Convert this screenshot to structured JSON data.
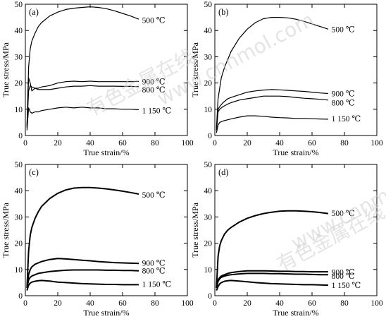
{
  "watermark": {
    "cn": "有色金属在线",
    "en": "www.cnnmol.com"
  },
  "chart_data": [
    {
      "type": "line",
      "panel_label": "(a)",
      "xlabel": "True strain/%",
      "ylabel": "True stress/MPa",
      "xlim": [
        0,
        100
      ],
      "ylim": [
        0,
        50
      ],
      "xticks": [
        0,
        20,
        40,
        60,
        80,
        100
      ],
      "yticks": [
        0,
        10,
        20,
        30,
        40,
        50
      ],
      "series": [
        {
          "name": "500 ℃",
          "x": [
            1,
            2,
            3,
            4,
            6,
            8,
            10,
            15,
            20,
            25,
            30,
            35,
            40,
            45,
            50,
            55,
            60,
            65,
            70
          ],
          "y": [
            4,
            26,
            33,
            36,
            39,
            41.5,
            43,
            45.5,
            47,
            48,
            48.5,
            48.8,
            49,
            48.8,
            48.3,
            47.5,
            46.5,
            45.5,
            44.3
          ]
        },
        {
          "name": "900 ℃",
          "x": [
            1,
            2,
            3,
            4,
            6,
            8,
            10,
            15,
            20,
            25,
            30,
            35,
            40,
            45,
            50,
            55,
            60,
            65,
            70
          ],
          "y": [
            3,
            22,
            20,
            17,
            18,
            18,
            18.5,
            19,
            20,
            20.5,
            20.7,
            20.5,
            20.7,
            20.5,
            20.5,
            20.5,
            20.5,
            20.5,
            20.6
          ]
        },
        {
          "name": "800 ℃",
          "x": [
            1,
            2,
            3,
            4,
            6,
            8,
            10,
            15,
            20,
            25,
            30,
            35,
            40,
            45,
            50,
            55,
            60,
            65,
            70
          ],
          "y": [
            3,
            17,
            19,
            18.5,
            18,
            17.5,
            17.5,
            17.5,
            18,
            18.5,
            18.8,
            18.8,
            19,
            18.8,
            18.8,
            18.8,
            18.7,
            18.7,
            18.6
          ]
        },
        {
          "name": "1 150 ℃",
          "x": [
            1,
            2,
            3,
            4,
            6,
            8,
            10,
            15,
            20,
            25,
            30,
            35,
            40,
            45,
            50,
            55,
            60,
            65,
            70
          ],
          "y": [
            2,
            10.5,
            9,
            8.5,
            9,
            9,
            9.5,
            10,
            10.5,
            10.8,
            10.5,
            10.8,
            10.5,
            10.5,
            10.2,
            10.2,
            10,
            10,
            9.8
          ]
        }
      ],
      "label_values": [
        44,
        20.5,
        17.5,
        9.5
      ]
    },
    {
      "type": "line",
      "panel_label": "(b)",
      "xlabel": "True strain/%",
      "ylabel": "True stress/MPa",
      "xlim": [
        0,
        100
      ],
      "ylim": [
        0,
        50
      ],
      "xticks": [
        0,
        20,
        40,
        60,
        80,
        100
      ],
      "yticks": [
        0,
        10,
        20,
        30,
        40,
        50
      ],
      "series": [
        {
          "name": "500 ℃",
          "x": [
            1,
            2,
            3,
            4,
            6,
            8,
            10,
            15,
            20,
            25,
            30,
            35,
            40,
            45,
            50,
            55,
            60,
            65,
            70
          ],
          "y": [
            3,
            14,
            18,
            22,
            26,
            29,
            32,
            37,
            40.5,
            43,
            44.5,
            45,
            45,
            44.8,
            44.3,
            43.5,
            42.5,
            41.5,
            40.5
          ]
        },
        {
          "name": "900 ℃",
          "x": [
            1,
            2,
            3,
            5,
            8,
            10,
            15,
            20,
            25,
            30,
            35,
            40,
            45,
            50,
            55,
            60,
            65,
            70
          ],
          "y": [
            2,
            10,
            11,
            12.5,
            14,
            14.5,
            15.5,
            16.5,
            17,
            17.3,
            17.5,
            17.4,
            17.2,
            17,
            16.8,
            16.5,
            16.2,
            16
          ]
        },
        {
          "name": "800 ℃",
          "x": [
            1,
            2,
            3,
            5,
            8,
            10,
            15,
            20,
            25,
            30,
            35,
            40,
            45,
            50,
            55,
            60,
            65,
            70
          ],
          "y": [
            2,
            9,
            10,
            11,
            12,
            12.5,
            13.5,
            14,
            14.5,
            15,
            15,
            15,
            14.8,
            14.5,
            14.2,
            14,
            13.8,
            13.5
          ]
        },
        {
          "name": "1 150 ℃",
          "x": [
            1,
            2,
            3,
            5,
            8,
            10,
            15,
            20,
            25,
            30,
            35,
            40,
            45,
            50,
            55,
            60,
            65,
            70
          ],
          "y": [
            1,
            4,
            5,
            5.5,
            6,
            6.3,
            7,
            7.5,
            7.5,
            7.3,
            7,
            6.8,
            6.7,
            6.5,
            6.5,
            6.4,
            6.3,
            6.2
          ]
        }
      ],
      "label_values": [
        40.5,
        16,
        12.5,
        6.5
      ]
    },
    {
      "type": "line",
      "panel_label": "(c)",
      "xlabel": "True strain/%",
      "ylabel": "True stress/MPa",
      "xlim": [
        0,
        100
      ],
      "ylim": [
        0,
        50
      ],
      "xticks": [
        0,
        20,
        40,
        60,
        80,
        100
      ],
      "yticks": [
        0,
        10,
        20,
        30,
        40,
        50
      ],
      "series": [
        {
          "name": "500 ℃",
          "x": [
            1,
            2,
            3,
            4,
            6,
            8,
            10,
            15,
            20,
            25,
            30,
            35,
            40,
            45,
            50,
            55,
            60,
            65,
            70
          ],
          "y": [
            3,
            17,
            23,
            26,
            29.5,
            32,
            34,
            37,
            39,
            40.3,
            41,
            41.2,
            41.2,
            41,
            40.7,
            40.3,
            39.8,
            39.3,
            38.7
          ]
        },
        {
          "name": "900 ℃",
          "x": [
            1,
            2,
            3,
            4,
            6,
            8,
            10,
            15,
            20,
            25,
            30,
            35,
            40,
            45,
            50,
            55,
            60,
            65,
            70
          ],
          "y": [
            3,
            8,
            10,
            11,
            12,
            12.5,
            13,
            13.8,
            14.2,
            14,
            13.8,
            13.5,
            13.3,
            13,
            12.8,
            12.6,
            12.5,
            12.4,
            12.3
          ]
        },
        {
          "name": "800 ℃",
          "x": [
            1,
            2,
            3,
            4,
            6,
            8,
            10,
            15,
            20,
            25,
            30,
            35,
            40,
            45,
            50,
            55,
            60,
            65,
            70
          ],
          "y": [
            3,
            6,
            7,
            7.5,
            8,
            8.5,
            8.7,
            9.2,
            9.5,
            9.7,
            9.8,
            9.8,
            9.8,
            9.8,
            9.7,
            9.7,
            9.6,
            9.6,
            9.5
          ]
        },
        {
          "name": "1 150 ℃",
          "x": [
            1,
            2,
            3,
            4,
            6,
            8,
            10,
            15,
            20,
            25,
            30,
            35,
            40,
            45,
            50,
            55,
            60,
            65,
            70
          ],
          "y": [
            2,
            4,
            4.8,
            5.2,
            5.5,
            5.7,
            5.8,
            5.6,
            5.2,
            5,
            4.8,
            4.6,
            4.5,
            4.4,
            4.3,
            4.3,
            4.2,
            4.2,
            4.2
          ]
        }
      ],
      "label_values": [
        38.5,
        12.5,
        9.5,
        4.5
      ]
    },
    {
      "type": "line",
      "panel_label": "(d)",
      "xlabel": "True strain/%",
      "ylabel": "True stress/MPa",
      "xlim": [
        0,
        100
      ],
      "ylim": [
        0,
        50
      ],
      "xticks": [
        0,
        20,
        40,
        60,
        80,
        100
      ],
      "yticks": [
        0,
        10,
        20,
        30,
        40,
        50
      ],
      "series": [
        {
          "name": "500 ℃",
          "x": [
            1,
            2,
            3,
            4,
            6,
            8,
            10,
            15,
            20,
            25,
            30,
            35,
            40,
            45,
            50,
            55,
            60,
            65,
            70
          ],
          "y": [
            3,
            15,
            19,
            21,
            23.5,
            25,
            26,
            28,
            29.5,
            30.5,
            31.3,
            31.8,
            32.2,
            32.3,
            32.3,
            32.2,
            32,
            31.7,
            31.3
          ]
        },
        {
          "name": "900 ℃",
          "x": [
            1,
            2,
            3,
            4,
            6,
            8,
            10,
            15,
            20,
            25,
            30,
            35,
            40,
            45,
            50,
            55,
            60,
            65,
            70
          ],
          "y": [
            3,
            6,
            7,
            7.5,
            8,
            8.5,
            8.8,
            9.2,
            9.5,
            9.5,
            9.5,
            9.4,
            9.3,
            9.3,
            9.2,
            9.2,
            9.1,
            9.1,
            9.1
          ]
        },
        {
          "name": "800 ℃",
          "x": [
            1,
            2,
            3,
            4,
            6,
            8,
            10,
            15,
            20,
            25,
            30,
            35,
            40,
            45,
            50,
            55,
            60,
            65,
            70
          ],
          "y": [
            3,
            5.5,
            6.5,
            7,
            7.5,
            7.8,
            8,
            8.3,
            8.5,
            8.5,
            8.5,
            8.4,
            8.4,
            8.3,
            8.2,
            8.2,
            8.1,
            8,
            8
          ]
        },
        {
          "name": "1 150 ℃",
          "x": [
            1,
            2,
            3,
            4,
            6,
            8,
            10,
            15,
            20,
            25,
            30,
            35,
            40,
            45,
            50,
            55,
            60,
            65,
            70
          ],
          "y": [
            2,
            3.5,
            4.5,
            5,
            5.5,
            5.7,
            5.8,
            5.6,
            5.3,
            5,
            4.8,
            4.6,
            4.5,
            4.4,
            4.3,
            4.2,
            4.2,
            4.1,
            4
          ]
        }
      ],
      "label_values": [
        31.5,
        9,
        7.5,
        4
      ]
    }
  ]
}
